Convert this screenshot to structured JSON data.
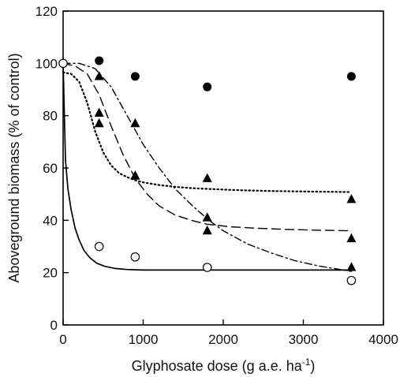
{
  "chart_data": {
    "type": "scatter",
    "title": "",
    "xlabel_main": "Glyphosate dose (g a.e. ha",
    "xlabel_sup": "-1",
    "xlabel_close": ")",
    "ylabel": "Aboveground biomass (% of control)",
    "xlim": [
      0,
      4000
    ],
    "ylim": [
      0,
      120
    ],
    "xticks": [
      0,
      1000,
      2000,
      3000,
      4000
    ],
    "yticks": [
      0,
      20,
      40,
      60,
      80,
      100,
      120
    ],
    "grid": false,
    "legend": "none",
    "series": [
      {
        "marker": "filled-circle",
        "x": [
          450,
          900,
          1800,
          3600
        ],
        "y": [
          101,
          95,
          91,
          95
        ]
      },
      {
        "marker": "open-circle",
        "curve": "solid",
        "x": [
          0,
          450,
          900,
          1800,
          3600
        ],
        "y": [
          100,
          30,
          26,
          22,
          17
        ],
        "curve_x": [
          0,
          30,
          60,
          100,
          150,
          200,
          260,
          330,
          420,
          520,
          650,
          800,
          1000,
          1300,
          1800,
          2600,
          3600
        ],
        "curve_y": [
          100,
          63,
          52,
          44,
          37,
          32.5,
          28.5,
          25.8,
          23.6,
          22.4,
          21.6,
          21.2,
          21,
          21,
          21,
          21,
          21
        ]
      },
      {
        "marker": "filled-triangle",
        "curve": "dotted",
        "x": [
          450,
          450,
          900,
          1800,
          3600
        ],
        "y": [
          81,
          77,
          57,
          56,
          48
        ],
        "curve_x": [
          0,
          100,
          200,
          300,
          400,
          500,
          600,
          700,
          800,
          900,
          1000,
          1200,
          1400,
          1600,
          1800,
          2200,
          2600,
          3000,
          3600
        ],
        "curve_y": [
          96.5,
          96,
          93,
          85,
          74,
          66,
          61,
          58,
          56.5,
          55.3,
          54.5,
          53.5,
          52.8,
          52.3,
          52,
          51.5,
          51.2,
          51,
          50.8
        ]
      },
      {
        "marker": "filled-triangle",
        "curve": "dashed",
        "x": [
          450,
          900,
          1800,
          3600
        ],
        "y": [
          95,
          57,
          36,
          33
        ],
        "curve_x": [
          0,
          150,
          300,
          450,
          600,
          750,
          900,
          1050,
          1200,
          1400,
          1600,
          1800,
          2100,
          2400,
          2800,
          3200,
          3600
        ],
        "curve_y": [
          100,
          99,
          96,
          88,
          76,
          65,
          56,
          50,
          45.5,
          42,
          40,
          38.5,
          37.5,
          37,
          36.5,
          36.2,
          36
        ]
      },
      {
        "marker": "filled-triangle",
        "curve": "dash-dot",
        "x": [
          900,
          1800,
          3600
        ],
        "y": [
          77,
          41,
          22
        ],
        "curve_x": [
          0,
          200,
          400,
          600,
          800,
          1000,
          1200,
          1400,
          1600,
          1800,
          2000,
          2300,
          2600,
          2900,
          3200,
          3600
        ],
        "curve_y": [
          100,
          100,
          98,
          91,
          80,
          69,
          60,
          52,
          46,
          40.5,
          36,
          31,
          27.5,
          24.5,
          22.5,
          20.5
        ]
      }
    ]
  }
}
